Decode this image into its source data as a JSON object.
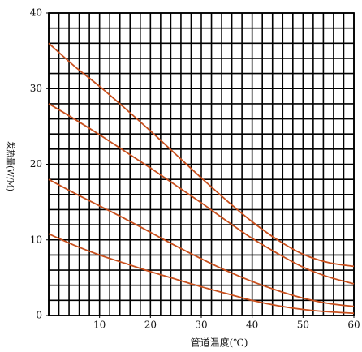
{
  "chart_data": {
    "type": "line",
    "ylabel": "发热量(W/M)",
    "xlabel": "管道温度(℃)",
    "x": [
      0,
      5,
      10,
      15,
      20,
      25,
      30,
      35,
      40,
      45,
      50,
      55,
      60
    ],
    "series": [
      {
        "color": "#c8501e",
        "values": [
          36,
          33,
          30.3,
          27.4,
          24.4,
          21.3,
          18.2,
          15.2,
          12.4,
          10,
          8.1,
          7,
          6.5
        ]
      },
      {
        "color": "#c8501e",
        "values": [
          28,
          26,
          23.9,
          21.7,
          19.5,
          17.2,
          14.9,
          12.5,
          10.2,
          8.2,
          6.4,
          5.1,
          4.2
        ]
      },
      {
        "color": "#c8501e",
        "values": [
          18,
          16.2,
          14.5,
          12.8,
          11,
          9.2,
          7.5,
          5.9,
          4.5,
          3.3,
          2.3,
          1.6,
          1.2
        ]
      },
      {
        "color": "#c8501e",
        "values": [
          10.8,
          9.3,
          8,
          6.9,
          5.8,
          4.8,
          3.8,
          2.9,
          2,
          1.3,
          0.8,
          0.5,
          0.3
        ]
      }
    ],
    "xlim": [
      0,
      60
    ],
    "xticks": [
      10,
      20,
      30,
      40,
      50,
      60
    ],
    "ylim": [
      0,
      40
    ],
    "yticks": [
      0,
      10,
      20,
      30,
      40
    ],
    "grid": {
      "x_step": 2,
      "y_step": 2
    }
  }
}
